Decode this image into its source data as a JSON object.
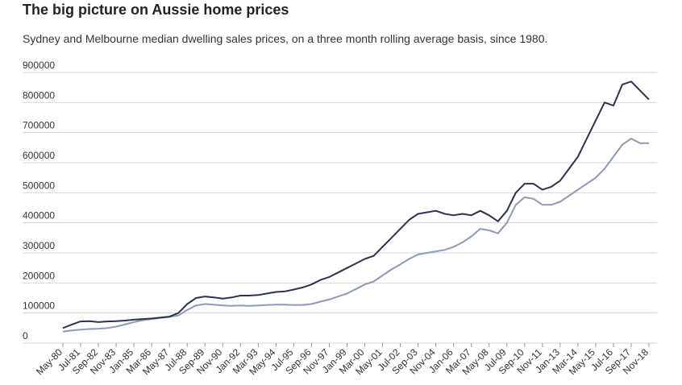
{
  "chart_data": {
    "type": "line",
    "title": "The big picture on Aussie home prices",
    "subtitle": "Sydney and Melbourne median dwelling sales prices, on a three month rolling average basis, since 1980.",
    "categories": [
      "May-80",
      null,
      "Jul-81",
      null,
      "Sep-82",
      null,
      "Nov-83",
      null,
      "Jan-85",
      null,
      "Mar-86",
      null,
      "May-87",
      null,
      "Jul-88",
      null,
      "Sep-89",
      null,
      "Nov-90",
      null,
      "Jan-92",
      null,
      "Mar-93",
      null,
      "May-94",
      null,
      "Jul-95",
      null,
      "Sep-96",
      null,
      "Nov-97",
      null,
      "Jan-99",
      null,
      "Mar-00",
      null,
      "May-01",
      null,
      "Jul-02",
      null,
      "Sep-03",
      null,
      "Nov-04",
      null,
      "Jan-06",
      null,
      "Mar-07",
      null,
      "May-08",
      null,
      "Jul-09",
      null,
      "Sep-10",
      null,
      "Nov-11",
      null,
      "Jan-13",
      null,
      "Mar-14",
      null,
      "May-15",
      null,
      "Jul-16",
      null,
      "Sep-17",
      null,
      "Nov-18"
    ],
    "series": [
      {
        "color": "#2b3350",
        "values": [
          50000,
          62000,
          72000,
          73000,
          70000,
          72000,
          73000,
          75000,
          78000,
          80000,
          82000,
          85000,
          88000,
          100000,
          130000,
          150000,
          155000,
          152000,
          148000,
          152000,
          158000,
          158000,
          160000,
          165000,
          170000,
          172000,
          178000,
          185000,
          195000,
          210000,
          220000,
          235000,
          250000,
          265000,
          280000,
          290000,
          320000,
          350000,
          380000,
          410000,
          430000,
          435000,
          440000,
          430000,
          425000,
          430000,
          425000,
          440000,
          425000,
          405000,
          440000,
          500000,
          530000,
          530000,
          510000,
          520000,
          540000,
          580000,
          620000,
          680000,
          740000,
          800000,
          790000,
          860000,
          870000,
          840000,
          810000
        ]
      },
      {
        "color": "#8c9ab8",
        "values": [
          38000,
          42000,
          45000,
          47000,
          48000,
          50000,
          55000,
          62000,
          70000,
          76000,
          80000,
          84000,
          87000,
          92000,
          110000,
          125000,
          130000,
          128000,
          125000,
          124000,
          125000,
          124000,
          125000,
          127000,
          128000,
          128000,
          127000,
          127000,
          130000,
          138000,
          145000,
          155000,
          165000,
          180000,
          195000,
          205000,
          225000,
          245000,
          262000,
          280000,
          295000,
          300000,
          305000,
          310000,
          320000,
          335000,
          355000,
          380000,
          375000,
          365000,
          400000,
          460000,
          485000,
          480000,
          460000,
          460000,
          470000,
          490000,
          510000,
          530000,
          550000,
          580000,
          620000,
          660000,
          680000,
          665000,
          665000
        ]
      }
    ],
    "ylim": [
      0,
      900000
    ],
    "yticks": [
      0,
      100000,
      200000,
      300000,
      400000,
      500000,
      600000,
      700000,
      800000,
      900000
    ],
    "grid": true
  }
}
